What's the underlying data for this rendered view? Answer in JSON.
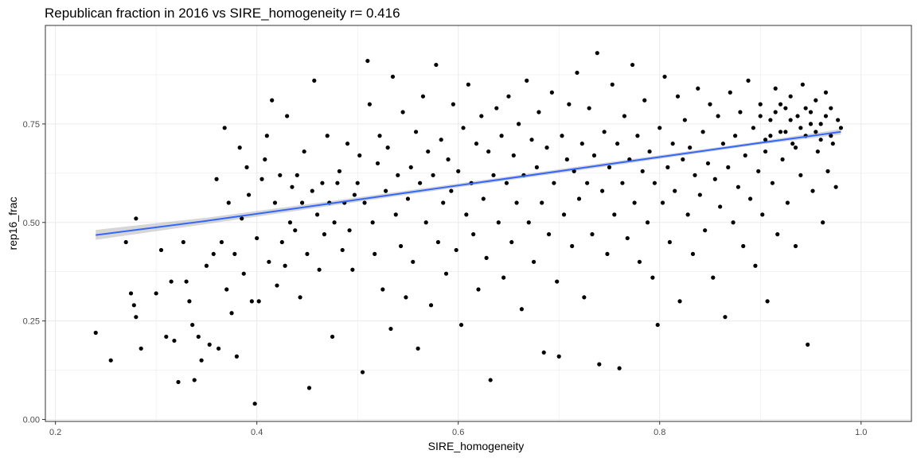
{
  "colors": {
    "background": "#ffffff",
    "panel_border": "#333333",
    "grid": "#ebebeb",
    "points": "#000000",
    "fit_line": "#3366ff",
    "ribbon": "#999999",
    "tick_text": "#4d4d4d"
  },
  "chart_data": {
    "type": "scatter",
    "title": "Republican fraction in 2016 vs SIRE_homogeneity  r= 0.416",
    "xlabel": "SIRE_homogeneity",
    "ylabel": "rep16_frac",
    "xlim": [
      0.19,
      1.05
    ],
    "ylim": [
      -0.005,
      1.0
    ],
    "x_ticks": [
      0.2,
      0.4,
      0.6,
      0.8,
      1.0
    ],
    "x_tick_labels": [
      "0.2",
      "0.4",
      "0.6",
      "0.8",
      "1.0"
    ],
    "y_ticks": [
      0.0,
      0.25,
      0.5,
      0.75
    ],
    "y_tick_labels": [
      "0.00",
      "0.25",
      "0.50",
      "0.75"
    ],
    "grid": true,
    "legend": "none",
    "fit": {
      "method": "smooth with confidence band",
      "color": "#3366ff",
      "points": [
        {
          "x": 0.24,
          "y": 0.468,
          "lo": 0.456,
          "hi": 0.481
        },
        {
          "x": 0.35,
          "y": 0.504,
          "lo": 0.496,
          "hi": 0.512
        },
        {
          "x": 0.47,
          "y": 0.547,
          "lo": 0.541,
          "hi": 0.553
        },
        {
          "x": 0.6,
          "y": 0.594,
          "lo": 0.589,
          "hi": 0.599
        },
        {
          "x": 0.75,
          "y": 0.648,
          "lo": 0.643,
          "hi": 0.653
        },
        {
          "x": 0.9,
          "y": 0.702,
          "lo": 0.698,
          "hi": 0.706
        },
        {
          "x": 0.98,
          "y": 0.73,
          "lo": 0.723,
          "hi": 0.737
        }
      ]
    },
    "series": [
      {
        "values": [
          [
            0.24,
            0.22
          ],
          [
            0.255,
            0.15
          ],
          [
            0.27,
            0.45
          ],
          [
            0.28,
            0.51
          ],
          [
            0.275,
            0.32
          ],
          [
            0.278,
            0.29
          ],
          [
            0.28,
            0.26
          ],
          [
            0.285,
            0.18
          ],
          [
            0.3,
            0.32
          ],
          [
            0.305,
            0.43
          ],
          [
            0.31,
            0.21
          ],
          [
            0.315,
            0.35
          ],
          [
            0.318,
            0.2
          ],
          [
            0.322,
            0.095
          ],
          [
            0.327,
            0.45
          ],
          [
            0.33,
            0.35
          ],
          [
            0.333,
            0.3
          ],
          [
            0.336,
            0.24
          ],
          [
            0.338,
            0.1
          ],
          [
            0.342,
            0.21
          ],
          [
            0.345,
            0.15
          ],
          [
            0.35,
            0.39
          ],
          [
            0.353,
            0.19
          ],
          [
            0.357,
            0.42
          ],
          [
            0.36,
            0.61
          ],
          [
            0.362,
            0.18
          ],
          [
            0.365,
            0.45
          ],
          [
            0.368,
            0.74
          ],
          [
            0.37,
            0.33
          ],
          [
            0.372,
            0.55
          ],
          [
            0.375,
            0.27
          ],
          [
            0.378,
            0.42
          ],
          [
            0.38,
            0.16
          ],
          [
            0.383,
            0.69
          ],
          [
            0.385,
            0.51
          ],
          [
            0.387,
            0.37
          ],
          [
            0.39,
            0.64
          ],
          [
            0.392,
            0.57
          ],
          [
            0.395,
            0.3
          ],
          [
            0.398,
            0.04
          ],
          [
            0.4,
            0.46
          ],
          [
            0.402,
            0.3
          ],
          [
            0.405,
            0.61
          ],
          [
            0.408,
            0.66
          ],
          [
            0.41,
            0.72
          ],
          [
            0.412,
            0.4
          ],
          [
            0.415,
            0.81
          ],
          [
            0.418,
            0.55
          ],
          [
            0.42,
            0.34
          ],
          [
            0.423,
            0.62
          ],
          [
            0.425,
            0.45
          ],
          [
            0.428,
            0.39
          ],
          [
            0.43,
            0.77
          ],
          [
            0.433,
            0.5
          ],
          [
            0.435,
            0.59
          ],
          [
            0.438,
            0.48
          ],
          [
            0.44,
            0.62
          ],
          [
            0.443,
            0.31
          ],
          [
            0.445,
            0.55
          ],
          [
            0.447,
            0.68
          ],
          [
            0.45,
            0.42
          ],
          [
            0.452,
            0.08
          ],
          [
            0.455,
            0.58
          ],
          [
            0.457,
            0.86
          ],
          [
            0.46,
            0.52
          ],
          [
            0.462,
            0.38
          ],
          [
            0.465,
            0.6
          ],
          [
            0.467,
            0.47
          ],
          [
            0.47,
            0.72
          ],
          [
            0.472,
            0.55
          ],
          [
            0.475,
            0.21
          ],
          [
            0.477,
            0.5
          ],
          [
            0.48,
            0.6
          ],
          [
            0.482,
            0.63
          ],
          [
            0.485,
            0.43
          ],
          [
            0.487,
            0.55
          ],
          [
            0.49,
            0.7
          ],
          [
            0.492,
            0.48
          ],
          [
            0.495,
            0.38
          ],
          [
            0.497,
            0.57
          ],
          [
            0.5,
            0.6
          ],
          [
            0.502,
            0.67
          ],
          [
            0.505,
            0.12
          ],
          [
            0.507,
            0.55
          ],
          [
            0.51,
            0.91
          ],
          [
            0.512,
            0.8
          ],
          [
            0.515,
            0.5
          ],
          [
            0.517,
            0.42
          ],
          [
            0.52,
            0.65
          ],
          [
            0.522,
            0.72
          ],
          [
            0.525,
            0.33
          ],
          [
            0.528,
            0.58
          ],
          [
            0.53,
            0.69
          ],
          [
            0.533,
            0.23
          ],
          [
            0.535,
            0.87
          ],
          [
            0.538,
            0.52
          ],
          [
            0.54,
            0.62
          ],
          [
            0.543,
            0.44
          ],
          [
            0.545,
            0.78
          ],
          [
            0.548,
            0.31
          ],
          [
            0.55,
            0.56
          ],
          [
            0.553,
            0.64
          ],
          [
            0.555,
            0.4
          ],
          [
            0.558,
            0.73
          ],
          [
            0.56,
            0.18
          ],
          [
            0.562,
            0.6
          ],
          [
            0.565,
            0.82
          ],
          [
            0.568,
            0.5
          ],
          [
            0.57,
            0.68
          ],
          [
            0.573,
            0.29
          ],
          [
            0.575,
            0.62
          ],
          [
            0.578,
            0.9
          ],
          [
            0.58,
            0.45
          ],
          [
            0.583,
            0.71
          ],
          [
            0.585,
            0.55
          ],
          [
            0.588,
            0.37
          ],
          [
            0.59,
            0.66
          ],
          [
            0.593,
            0.58
          ],
          [
            0.595,
            0.8
          ],
          [
            0.598,
            0.43
          ],
          [
            0.6,
            0.63
          ],
          [
            0.603,
            0.24
          ],
          [
            0.605,
            0.74
          ],
          [
            0.608,
            0.52
          ],
          [
            0.61,
            0.85
          ],
          [
            0.613,
            0.6
          ],
          [
            0.615,
            0.47
          ],
          [
            0.618,
            0.7
          ],
          [
            0.62,
            0.33
          ],
          [
            0.623,
            0.77
          ],
          [
            0.625,
            0.56
          ],
          [
            0.628,
            0.41
          ],
          [
            0.63,
            0.68
          ],
          [
            0.632,
            0.1
          ],
          [
            0.635,
            0.62
          ],
          [
            0.638,
            0.79
          ],
          [
            0.64,
            0.5
          ],
          [
            0.643,
            0.72
          ],
          [
            0.645,
            0.36
          ],
          [
            0.648,
            0.6
          ],
          [
            0.65,
            0.82
          ],
          [
            0.653,
            0.45
          ],
          [
            0.655,
            0.67
          ],
          [
            0.658,
            0.55
          ],
          [
            0.66,
            0.75
          ],
          [
            0.663,
            0.28
          ],
          [
            0.665,
            0.62
          ],
          [
            0.668,
            0.86
          ],
          [
            0.67,
            0.5
          ],
          [
            0.673,
            0.71
          ],
          [
            0.675,
            0.4
          ],
          [
            0.678,
            0.64
          ],
          [
            0.68,
            0.78
          ],
          [
            0.683,
            0.55
          ],
          [
            0.685,
            0.17
          ],
          [
            0.688,
            0.69
          ],
          [
            0.69,
            0.47
          ],
          [
            0.693,
            0.83
          ],
          [
            0.695,
            0.6
          ],
          [
            0.698,
            0.35
          ],
          [
            0.7,
            0.16
          ],
          [
            0.703,
            0.72
          ],
          [
            0.705,
            0.52
          ],
          [
            0.708,
            0.66
          ],
          [
            0.71,
            0.8
          ],
          [
            0.713,
            0.44
          ],
          [
            0.715,
            0.63
          ],
          [
            0.718,
            0.88
          ],
          [
            0.72,
            0.56
          ],
          [
            0.723,
            0.7
          ],
          [
            0.725,
            0.31
          ],
          [
            0.728,
            0.6
          ],
          [
            0.73,
            0.79
          ],
          [
            0.733,
            0.47
          ],
          [
            0.735,
            0.67
          ],
          [
            0.738,
            0.93
          ],
          [
            0.74,
            0.14
          ],
          [
            0.743,
            0.58
          ],
          [
            0.745,
            0.73
          ],
          [
            0.748,
            0.42
          ],
          [
            0.75,
            0.64
          ],
          [
            0.753,
            0.85
          ],
          [
            0.755,
            0.52
          ],
          [
            0.758,
            0.7
          ],
          [
            0.76,
            0.13
          ],
          [
            0.763,
            0.6
          ],
          [
            0.765,
            0.77
          ],
          [
            0.768,
            0.46
          ],
          [
            0.77,
            0.66
          ],
          [
            0.773,
            0.9
          ],
          [
            0.775,
            0.55
          ],
          [
            0.778,
            0.72
          ],
          [
            0.78,
            0.4
          ],
          [
            0.783,
            0.63
          ],
          [
            0.785,
            0.81
          ],
          [
            0.788,
            0.5
          ],
          [
            0.79,
            0.68
          ],
          [
            0.793,
            0.36
          ],
          [
            0.795,
            0.6
          ],
          [
            0.798,
            0.24
          ],
          [
            0.8,
            0.74
          ],
          [
            0.803,
            0.55
          ],
          [
            0.805,
            0.87
          ],
          [
            0.808,
            0.64
          ],
          [
            0.81,
            0.45
          ],
          [
            0.813,
            0.7
          ],
          [
            0.815,
            0.58
          ],
          [
            0.818,
            0.82
          ],
          [
            0.82,
            0.3
          ],
          [
            0.823,
            0.66
          ],
          [
            0.825,
            0.76
          ],
          [
            0.828,
            0.52
          ],
          [
            0.83,
            0.69
          ],
          [
            0.833,
            0.42
          ],
          [
            0.835,
            0.62
          ],
          [
            0.838,
            0.84
          ],
          [
            0.84,
            0.57
          ],
          [
            0.843,
            0.73
          ],
          [
            0.845,
            0.48
          ],
          [
            0.848,
            0.65
          ],
          [
            0.85,
            0.8
          ],
          [
            0.853,
            0.36
          ],
          [
            0.855,
            0.61
          ],
          [
            0.858,
            0.77
          ],
          [
            0.86,
            0.54
          ],
          [
            0.863,
            0.7
          ],
          [
            0.865,
            0.26
          ],
          [
            0.868,
            0.64
          ],
          [
            0.87,
            0.83
          ],
          [
            0.873,
            0.5
          ],
          [
            0.875,
            0.72
          ],
          [
            0.878,
            0.59
          ],
          [
            0.88,
            0.78
          ],
          [
            0.883,
            0.44
          ],
          [
            0.885,
            0.67
          ],
          [
            0.888,
            0.86
          ],
          [
            0.89,
            0.56
          ],
          [
            0.893,
            0.74
          ],
          [
            0.895,
            0.39
          ],
          [
            0.898,
            0.63
          ],
          [
            0.9,
            0.8
          ],
          [
            0.902,
            0.52
          ],
          [
            0.905,
            0.71
          ],
          [
            0.907,
            0.3
          ],
          [
            0.91,
            0.76
          ],
          [
            0.912,
            0.6
          ],
          [
            0.915,
            0.84
          ],
          [
            0.917,
            0.47
          ],
          [
            0.92,
            0.73
          ],
          [
            0.922,
            0.66
          ],
          [
            0.925,
            0.79
          ],
          [
            0.927,
            0.55
          ],
          [
            0.93,
            0.82
          ],
          [
            0.932,
            0.7
          ],
          [
            0.935,
            0.44
          ],
          [
            0.937,
            0.77
          ],
          [
            0.94,
            0.62
          ],
          [
            0.942,
            0.85
          ],
          [
            0.945,
            0.72
          ],
          [
            0.947,
            0.19
          ],
          [
            0.95,
            0.78
          ],
          [
            0.952,
            0.58
          ],
          [
            0.955,
            0.81
          ],
          [
            0.957,
            0.68
          ],
          [
            0.96,
            0.75
          ],
          [
            0.962,
            0.5
          ],
          [
            0.965,
            0.83
          ],
          [
            0.967,
            0.63
          ],
          [
            0.97,
            0.79
          ],
          [
            0.972,
            0.7
          ],
          [
            0.975,
            0.59
          ],
          [
            0.977,
            0.76
          ],
          [
            0.98,
            0.74
          ],
          [
            0.93,
            0.76
          ],
          [
            0.92,
            0.8
          ],
          [
            0.94,
            0.74
          ],
          [
            0.91,
            0.72
          ],
          [
            0.95,
            0.75
          ],
          [
            0.96,
            0.71
          ],
          [
            0.9,
            0.77
          ],
          [
            0.925,
            0.73
          ],
          [
            0.945,
            0.79
          ],
          [
            0.935,
            0.69
          ],
          [
            0.955,
            0.73
          ],
          [
            0.915,
            0.78
          ],
          [
            0.965,
            0.77
          ],
          [
            0.905,
            0.68
          ],
          [
            0.97,
            0.72
          ]
        ]
      }
    ]
  }
}
